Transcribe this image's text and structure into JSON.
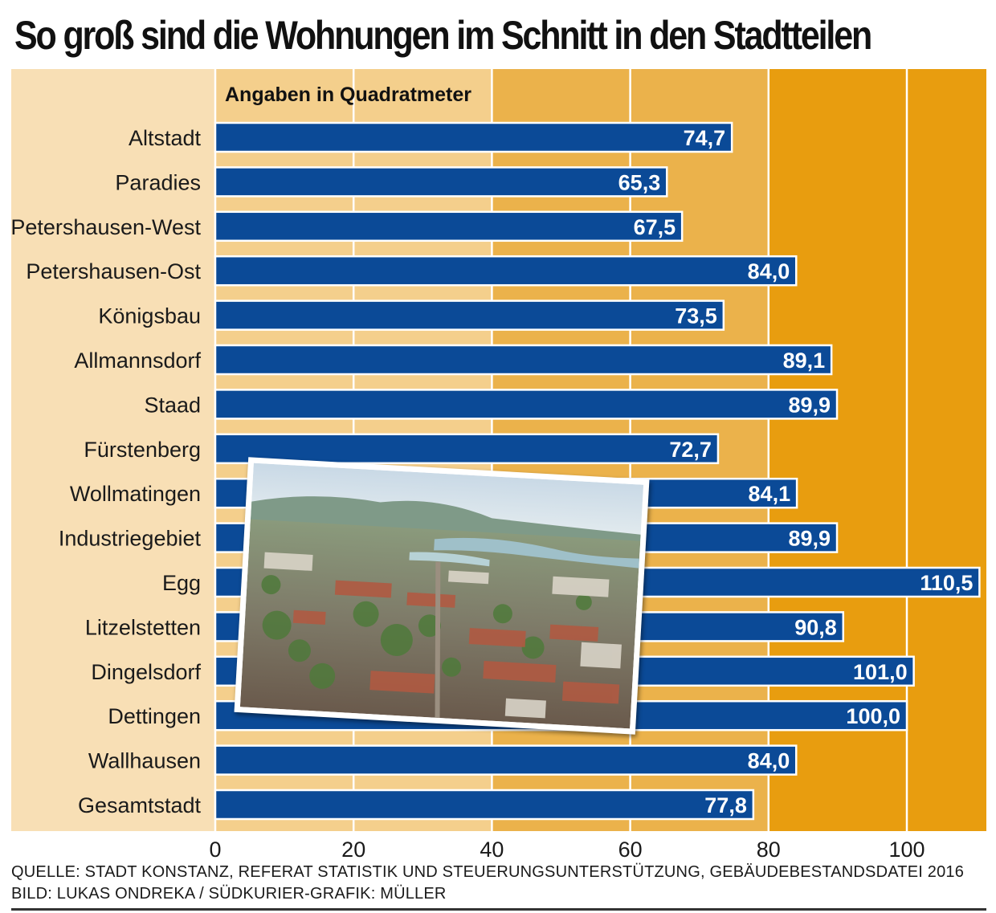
{
  "title": "So groß sind die Wohnungen im Schnitt in den Stadtteilen",
  "colors": {
    "bar": "#0b4a97",
    "bar_border": "#ffffff",
    "band_label_area": "#f8dfb5",
    "band_light": "#f4cf8c",
    "band_mid": "#ebb24b",
    "band_dark": "#e89d0f",
    "gridline": "#ffffff"
  },
  "chart_data": {
    "type": "bar",
    "orientation": "horizontal",
    "subtitle": "Angaben in Quadratmeter",
    "categories": [
      "Altstadt",
      "Paradies",
      "Petershausen-West",
      "Petershausen-Ost",
      "Königsbau",
      "Allmannsdorf",
      "Staad",
      "Fürstenberg",
      "Wollmatingen",
      "Industriegebiet",
      "Egg",
      "Litzelstetten",
      "Dingelsdorf",
      "Dettingen",
      "Wallhausen",
      "Gesamtstadt"
    ],
    "values": [
      74.7,
      65.3,
      67.5,
      84.0,
      73.5,
      89.1,
      89.9,
      72.7,
      84.1,
      89.9,
      110.5,
      90.8,
      101.0,
      100.0,
      84.0,
      77.8
    ],
    "value_labels": [
      "74,7",
      "65,3",
      "67,5",
      "84,0",
      "73,5",
      "89,1",
      "89,9",
      "72,7",
      "84,1",
      "89,9",
      "110,5",
      "90,8",
      "101,0",
      "100,0",
      "84,0",
      "77,8"
    ],
    "xlim": [
      0,
      112
    ],
    "xticks": [
      0,
      20,
      40,
      60,
      80,
      100
    ],
    "xtick_labels": [
      "0",
      "20",
      "40",
      "60",
      "80",
      "100"
    ],
    "grid": true
  },
  "source": {
    "line1": "QUELLE: STADT KONSTANZ, REFERAT STATISTIK UND STEUERUNGSUNTERSTÜTZUNG, GEBÄUDEBESTANDSDATEI 2016",
    "line2": "BILD: LUKAS ONDREKA / SÜDKURIER-GRAFIK: MÜLLER"
  },
  "photo": {
    "subject": "aerial-city-photo"
  }
}
